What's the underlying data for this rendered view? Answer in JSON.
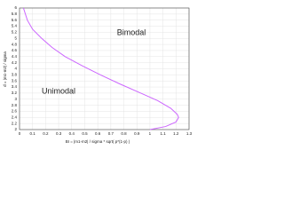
{
  "chart_data": {
    "type": "line",
    "x_label": "BI = |m1-m2| / sigma * sqrt( p*(1-p) )",
    "y_label": "d = |m1-m2| / sigma",
    "annotations": [
      "Bimodal",
      "Unimodal"
    ],
    "x": [
      0.03,
      0.06,
      0.1,
      0.17,
      0.25,
      0.35,
      0.48,
      0.62,
      0.77,
      0.93,
      1.06,
      1.16,
      1.21,
      1.22,
      1.2,
      1.12,
      1.0
    ],
    "series": [
      {
        "color": "#cc66ff",
        "values": [
          6.0,
          5.6,
          5.3,
          5.0,
          4.7,
          4.4,
          4.1,
          3.8,
          3.5,
          3.2,
          2.95,
          2.7,
          2.5,
          2.4,
          2.25,
          2.1,
          2.0
        ]
      }
    ],
    "xlim": [
      0,
      1.3
    ],
    "ylim": [
      2,
      6
    ],
    "xticks": [
      0,
      0.1,
      0.2,
      0.3,
      0.4,
      0.5,
      0.6,
      0.7,
      0.8,
      0.9,
      1,
      1.1,
      1.2,
      1.3
    ],
    "yticks": [
      2,
      2.2,
      2.4,
      2.6,
      2.8,
      3,
      3.2,
      3.4,
      3.6,
      3.8,
      4,
      4.2,
      4.4,
      4.6,
      4.8,
      5,
      5.2,
      5.4,
      5.6,
      5.8,
      6
    ],
    "grid": true
  }
}
